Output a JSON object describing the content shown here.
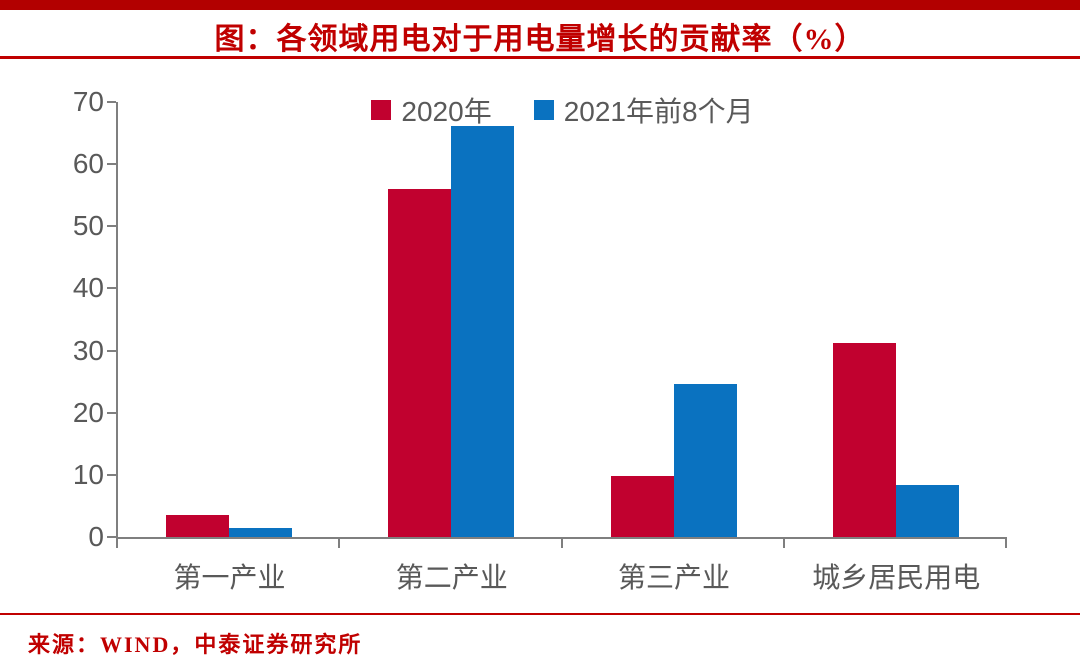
{
  "page": {
    "background": "#ffffff"
  },
  "header": {
    "title": "图：各领域用电对于用电量增长的贡献率（%）",
    "title_color": "#C00000",
    "top_bar_color": "#B20000",
    "rule_color": "#C00000"
  },
  "chart_data": {
    "type": "bar",
    "title": "各领域用电对于用电量增长的贡献率（%）",
    "categories": [
      "第一产业",
      "第二产业",
      "第三产业",
      "城乡居民用电"
    ],
    "series": [
      {
        "name": "2020年",
        "color": "#C1012F",
        "values": [
          3.5,
          56.0,
          9.8,
          31.3
        ]
      },
      {
        "name": "2021年前8个月",
        "color": "#0A72C0",
        "values": [
          1.5,
          66.1,
          24.7,
          8.4
        ]
      }
    ],
    "ylim": [
      0,
      70
    ],
    "yticks": [
      0,
      10,
      20,
      30,
      40,
      50,
      60,
      70
    ],
    "grid": false,
    "legend_position": "top-center",
    "axis_color": "#7f7f7f",
    "label_color": "#595959",
    "unit": "%"
  },
  "footer": {
    "source": "来源：WIND，中泰证券研究所",
    "color": "#C00000"
  }
}
